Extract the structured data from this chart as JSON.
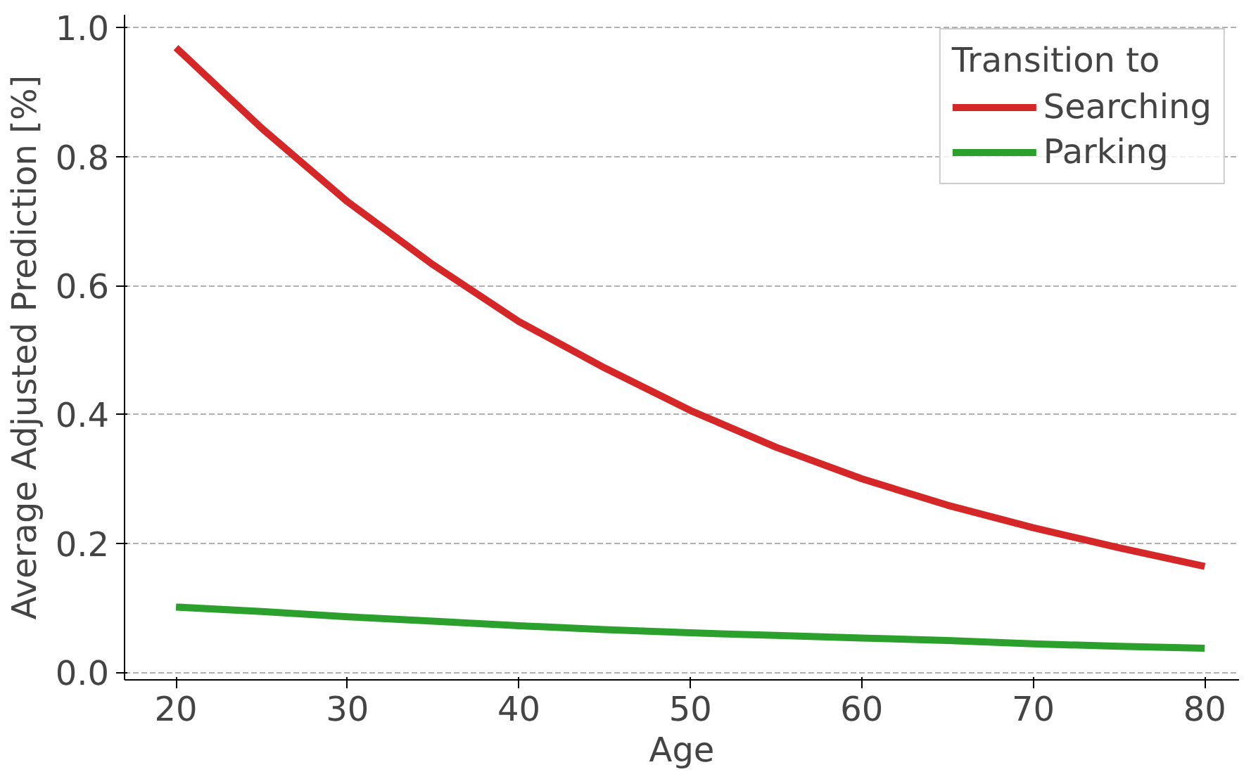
{
  "chart_data": {
    "type": "line",
    "xlabel": "Age",
    "ylabel": "Average Adjusted Prediction [%]",
    "legend_title": "Transition to",
    "x": [
      20,
      25,
      30,
      35,
      40,
      45,
      50,
      55,
      60,
      65,
      70,
      75,
      80
    ],
    "series": [
      {
        "name": "Searching",
        "color": "#d62728",
        "values": [
          0.969,
          0.844,
          0.73,
          0.632,
          0.544,
          0.472,
          0.406,
          0.349,
          0.3,
          0.259,
          0.224,
          0.193,
          0.164
        ]
      },
      {
        "name": "Parking",
        "color": "#2ca02c",
        "values": [
          0.101,
          0.094,
          0.086,
          0.079,
          0.072,
          0.066,
          0.061,
          0.057,
          0.053,
          0.049,
          0.044,
          0.04,
          0.037
        ]
      }
    ],
    "xlim": [
      17,
      82
    ],
    "ylim": [
      -0.012,
      1.02
    ],
    "xticks": [
      20,
      30,
      40,
      50,
      60,
      70,
      80
    ],
    "yticks": [
      {
        "value": 0,
        "label": "0.0"
      },
      {
        "value": 0.2,
        "label": "0.2"
      },
      {
        "value": 0.4,
        "label": "0.4"
      },
      {
        "value": 0.6,
        "label": "0.6"
      },
      {
        "value": 0.8,
        "label": "0.8"
      },
      {
        "value": 1,
        "label": "1.0"
      }
    ],
    "grid": "y",
    "legend": "top right",
    "line_style": "solid",
    "marker": "none"
  }
}
